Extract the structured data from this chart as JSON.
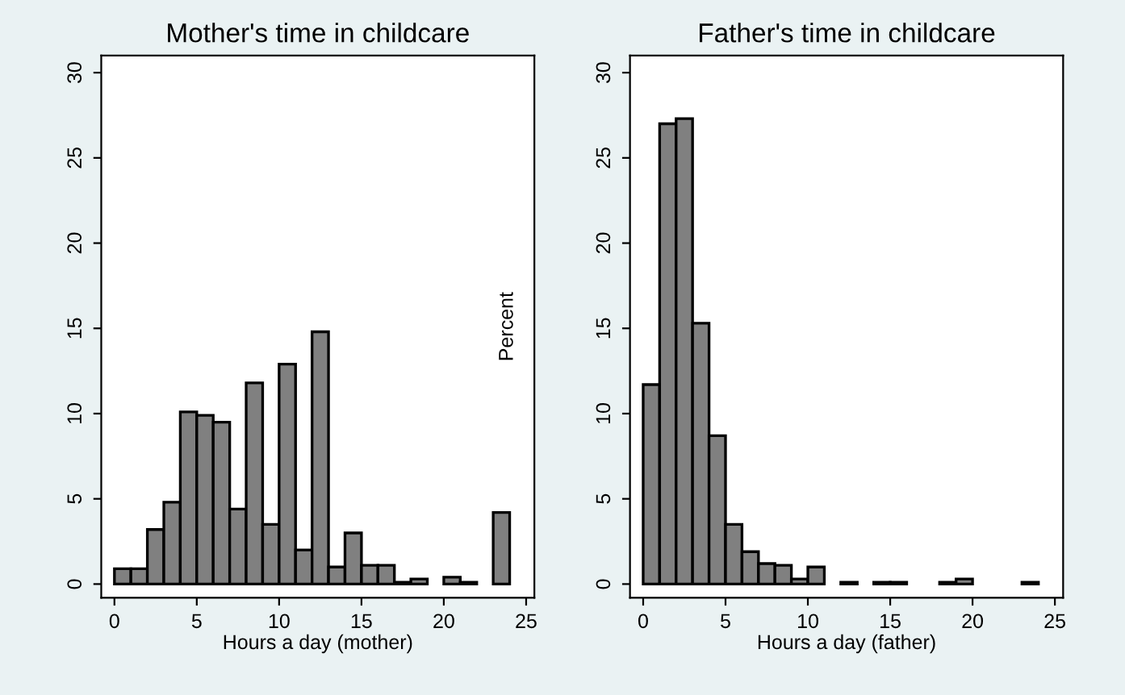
{
  "chart_data": [
    {
      "type": "histogram",
      "title": "Mother's time in childcare",
      "xlabel": "Hours a day (mother)",
      "ylabel": "Percent",
      "bins": [
        0,
        1,
        2,
        3,
        4,
        5,
        6,
        7,
        8,
        9,
        10,
        11,
        12,
        13,
        14,
        15,
        16,
        17,
        18,
        19,
        20,
        21,
        22,
        23,
        24
      ],
      "values": [
        0.9,
        0.9,
        3.2,
        4.8,
        10.1,
        9.9,
        9.5,
        4.4,
        11.8,
        3.5,
        12.9,
        2.0,
        14.8,
        1.0,
        3.0,
        1.1,
        1.1,
        0.1,
        0.3,
        null,
        0.4,
        0.1,
        null,
        4.2
      ],
      "color": "#808080",
      "xlim": [
        -0.8,
        25.5
      ],
      "ylim": [
        -0.8,
        31
      ],
      "xticks": [
        0,
        5,
        10,
        15,
        20,
        25
      ],
      "yticks": [
        0,
        5,
        10,
        15,
        20,
        25,
        30
      ],
      "grid": false
    },
    {
      "type": "histogram",
      "title": "Father's time in childcare",
      "xlabel": "Hours a day (father)",
      "bins": [
        0,
        1,
        2,
        3,
        4,
        5,
        6,
        7,
        8,
        9,
        10,
        11,
        12,
        13,
        14,
        15,
        16,
        17,
        18,
        19,
        20,
        21,
        22,
        23,
        24
      ],
      "values": [
        11.7,
        27.0,
        27.3,
        15.3,
        8.7,
        3.5,
        1.9,
        1.2,
        1.1,
        0.3,
        1.0,
        null,
        0.1,
        null,
        0.1,
        0.1,
        null,
        null,
        0.1,
        0.3,
        null,
        null,
        null,
        0.1
      ],
      "color": "#808080",
      "xlim": [
        -0.8,
        25.5
      ],
      "ylim": [
        -0.8,
        31
      ],
      "xticks": [
        0,
        5,
        10,
        15,
        20,
        25
      ],
      "yticks": [
        0,
        5,
        10,
        15,
        20,
        25,
        30
      ],
      "grid": false
    }
  ]
}
